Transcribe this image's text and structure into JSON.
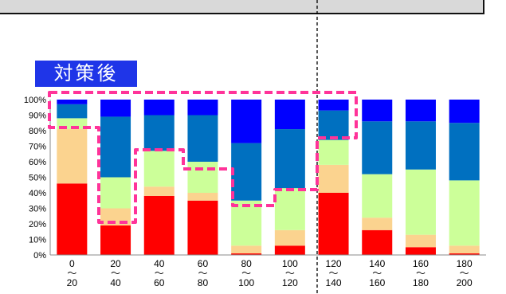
{
  "badge": {
    "label": "対策後"
  },
  "chart_data": {
    "type": "bar",
    "stacked": true,
    "normalized": true,
    "categories": [
      [
        "0",
        "〜",
        "20"
      ],
      [
        "20",
        "〜",
        "40"
      ],
      [
        "40",
        "〜",
        "60"
      ],
      [
        "60",
        "〜",
        "80"
      ],
      [
        "80",
        "〜",
        "100"
      ],
      [
        "100",
        "〜",
        "120"
      ],
      [
        "120",
        "〜",
        "140"
      ],
      [
        "140",
        "〜",
        "160"
      ],
      [
        "160",
        "〜",
        "180"
      ],
      [
        "180",
        "〜",
        "200"
      ]
    ],
    "series": [
      {
        "color": "#ff0000",
        "values": [
          46,
          19,
          38,
          35,
          1,
          6,
          40,
          16,
          5,
          1
        ]
      },
      {
        "color": "#fbd38f",
        "values": [
          35,
          11,
          6,
          5,
          5,
          10,
          18,
          8,
          8,
          5
        ]
      },
      {
        "color": "#ccff99",
        "values": [
          7,
          20,
          23,
          20,
          29,
          27,
          16,
          28,
          42,
          42
        ]
      },
      {
        "color": "#0070c0",
        "values": [
          9,
          39,
          23,
          30,
          37,
          38,
          19,
          34,
          31,
          37
        ]
      },
      {
        "color": "#0000ff",
        "values": [
          3,
          11,
          10,
          10,
          28,
          19,
          7,
          14,
          14,
          15
        ]
      }
    ],
    "ylim": [
      0,
      100
    ],
    "yticks": [
      "0%",
      "10%",
      "20%",
      "30%",
      "40%",
      "50%",
      "60%",
      "70%",
      "80%",
      "90%",
      "100%"
    ],
    "grid": false,
    "annotations": [
      {
        "type": "dashed-outline",
        "color": "#ff3399"
      },
      {
        "type": "vertical-dashed-line",
        "color": "#000000"
      }
    ]
  }
}
